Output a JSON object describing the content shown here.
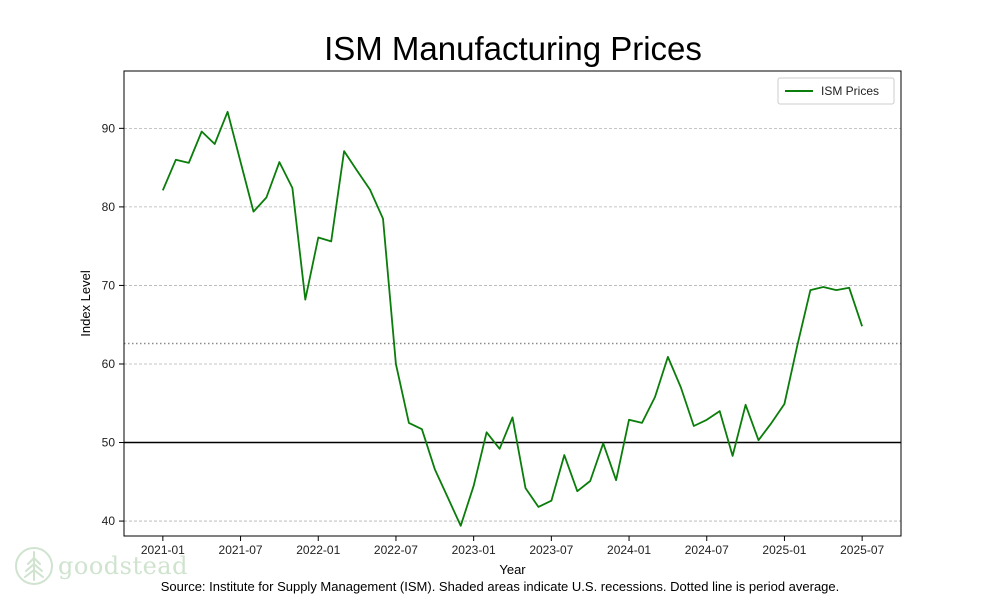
{
  "colors": {
    "line": "#0a7d0a",
    "grid": "#b3b3b3",
    "threshold": "#000000",
    "average": "#8c8c8c",
    "brand": "#cfe3cf"
  },
  "source_note": "Source:  Institute for Supply Management (ISM). Shaded areas indicate U.S. recessions. Dotted line is period average.",
  "brand": {
    "name": "goodstead",
    "icon": "tree-icon"
  },
  "chart_data": {
    "type": "line",
    "title": "ISM Manufacturing Prices",
    "xlabel": "Year",
    "ylabel": "Index Level",
    "ylim": [
      38.1,
      97.3
    ],
    "xlim": [
      "2020-10",
      "2025-10"
    ],
    "x_ticks": [
      "2021-01",
      "2021-07",
      "2022-01",
      "2022-07",
      "2023-01",
      "2023-07",
      "2024-01",
      "2024-07",
      "2025-01",
      "2025-07"
    ],
    "y_ticks": [
      40,
      50,
      60,
      70,
      80,
      90
    ],
    "grid": true,
    "legend_position": "top-right",
    "reference_lines": [
      {
        "name": "threshold",
        "value": 50,
        "style": "solid"
      },
      {
        "name": "period average",
        "value": 62.6,
        "style": "dotted"
      }
    ],
    "series": [
      {
        "name": "ISM Prices",
        "x": [
          "2021-01",
          "2021-02",
          "2021-03",
          "2021-04",
          "2021-05",
          "2021-06",
          "2021-07",
          "2021-08",
          "2021-09",
          "2021-10",
          "2021-11",
          "2021-12",
          "2022-01",
          "2022-02",
          "2022-03",
          "2022-04",
          "2022-05",
          "2022-06",
          "2022-07",
          "2022-08",
          "2022-09",
          "2022-10",
          "2022-11",
          "2022-12",
          "2023-01",
          "2023-02",
          "2023-03",
          "2023-04",
          "2023-05",
          "2023-06",
          "2023-07",
          "2023-08",
          "2023-09",
          "2023-10",
          "2023-11",
          "2023-12",
          "2024-01",
          "2024-02",
          "2024-03",
          "2024-04",
          "2024-05",
          "2024-06",
          "2024-07",
          "2024-08",
          "2024-09",
          "2024-10",
          "2024-11",
          "2024-12",
          "2025-01",
          "2025-02",
          "2025-03",
          "2025-04",
          "2025-05",
          "2025-06",
          "2025-07"
        ],
        "values": [
          82.1,
          86.0,
          85.6,
          89.6,
          88.0,
          92.1,
          85.7,
          79.4,
          81.2,
          85.7,
          82.4,
          68.2,
          76.1,
          75.6,
          87.1,
          84.6,
          82.2,
          78.5,
          60.0,
          52.5,
          51.7,
          46.6,
          43.0,
          39.4,
          44.5,
          51.3,
          49.2,
          53.2,
          44.2,
          41.8,
          42.6,
          48.4,
          43.8,
          45.1,
          49.9,
          45.2,
          52.9,
          52.5,
          55.8,
          60.9,
          57.0,
          52.1,
          52.9,
          54.0,
          48.3,
          54.8,
          50.3,
          52.5,
          54.9,
          62.4,
          69.4,
          69.8,
          69.4,
          69.7,
          64.8
        ]
      }
    ]
  }
}
